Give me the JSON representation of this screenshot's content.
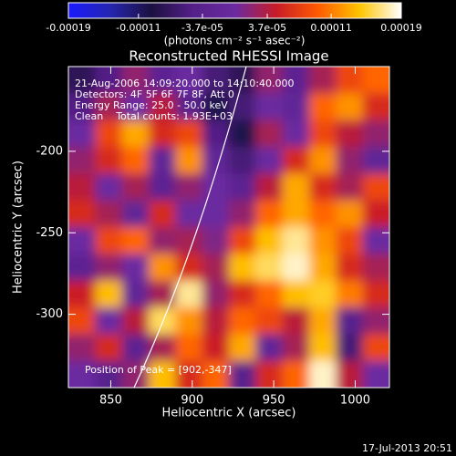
{
  "chart_data": {
    "type": "heatmap",
    "title": "Reconstructed RHESSI Image",
    "xlabel": "Heliocentric X (arcsec)",
    "ylabel": "Heliocentric Y (arcsec)",
    "xlim": [
      824,
      1021
    ],
    "ylim": [
      -345,
      -148
    ],
    "xticks": [
      850,
      900,
      950,
      1000
    ],
    "yticks": [
      -300,
      -250,
      -200
    ],
    "colorbar": {
      "label": "(photons cm⁻² s⁻¹ asec⁻²)",
      "lim": [
        -0.00019,
        0.00019
      ],
      "ticks": [
        -0.00019,
        -0.00011,
        {
          "value": -3.7e-05,
          "label": "-3.7e-05"
        },
        {
          "value": 3.7e-05,
          "label": "3.7e-05"
        },
        0.00011,
        0.00019
      ]
    },
    "colormap": [
      "#1a1aff",
      "#2525b0",
      "#1c1040",
      "#55208a",
      "#6a2aa0",
      "#c81c28",
      "#ff5a00",
      "#ffc400",
      "#ffffff"
    ],
    "annotations": [
      "21-Aug-2006 14:09:20.000 to 14:10:40.000",
      "Detectors: 4F 5F 6F 7F 8F, Att 0",
      "Energy Range: 25.0 - 50.0 keV",
      "Clean    Total counts: 1.93E+03"
    ],
    "peak_label": "Position of Peak = [902,-347]",
    "footer": "17-Jul-2013 20:51",
    "values": [
      [
        -8e-05,
        -5e-05,
        2e-05,
        -3e-05,
        0,
        -6e-05,
        -8e-05,
        2e-05,
        -3e-05,
        3e-05,
        8e-05,
        0.0001
      ],
      [
        -5e-05,
        3e-05,
        0,
        4e-05,
        -4e-05,
        -0.0001,
        -6e-05,
        0,
        -2e-05,
        0.0001,
        0.00012,
        6e-05
      ],
      [
        0,
        8e-05,
        0.00013,
        6e-05,
        8e-05,
        -5e-05,
        -0.0001,
        3e-05,
        0,
        8e-05,
        4e-05,
        2e-05
      ],
      [
        2e-05,
        6e-05,
        0.0001,
        -2e-05,
        0.00012,
        -2e-05,
        -6e-05,
        0,
        6e-05,
        0.00012,
        2e-05,
        -2e-05
      ],
      [
        4e-05,
        0,
        3e-05,
        -3e-05,
        2e-05,
        0,
        -3e-05,
        4e-05,
        0.00013,
        6e-05,
        3e-05,
        8e-05
      ],
      [
        6e-05,
        3e-05,
        -2e-05,
        6e-05,
        0,
        0,
        2e-05,
        0.0001,
        0.00013,
        0.0001,
        0.00012,
        5e-05
      ],
      [
        0,
        8e-05,
        0.0001,
        2e-05,
        3e-05,
        1e-05,
        8e-05,
        0.00014,
        0.00017,
        0.00012,
        8e-05,
        0
      ],
      [
        -3e-05,
        2e-05,
        0,
        0.00012,
        6e-05,
        3e-05,
        0.00014,
        0.00016,
        0.00018,
        0.00013,
        6e-05,
        3e-05
      ],
      [
        5e-05,
        0.00014,
        -2e-05,
        3e-05,
        0.00017,
        2e-05,
        6e-05,
        0.0001,
        0.00014,
        0.00015,
        0.00011,
        6e-05
      ],
      [
        8e-05,
        0,
        4e-05,
        0.00016,
        0.00012,
        4e-05,
        0.0001,
        8e-05,
        4e-05,
        0.00013,
        -4e-05,
        2e-05
      ],
      [
        2e-05,
        6e-05,
        -3e-05,
        3e-05,
        0.0001,
        5e-05,
        0.00013,
        -2e-05,
        3e-05,
        0.00014,
        -6e-05,
        8e-05
      ],
      [
        0,
        -4e-05,
        2e-05,
        0.00014,
        6e-05,
        0.0001,
        -4e-05,
        6e-05,
        0.0001,
        0.00018,
        4e-05,
        0
      ]
    ]
  }
}
